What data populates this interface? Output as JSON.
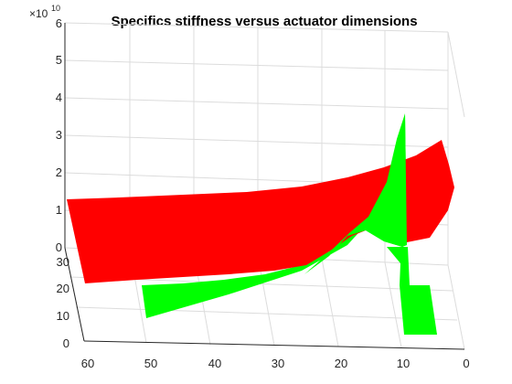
{
  "chart_data": {
    "type": "surface3d",
    "title": "Specifics stiffness versus actuator dimensions",
    "xlabel": "",
    "ylabel": "",
    "zlabel": "",
    "x_ticks": [
      "60",
      "50",
      "40",
      "30",
      "20",
      "10",
      "0"
    ],
    "y_ticks": [
      "0",
      "10",
      "20",
      "30"
    ],
    "z_ticks": [
      "0",
      "1",
      "2",
      "3",
      "4",
      "5",
      "6"
    ],
    "z_exponent_label": "×10",
    "z_exponent": "10",
    "xlim": [
      0,
      60
    ],
    "ylim": [
      0,
      30
    ],
    "zlim": [
      0,
      60000000000.0
    ],
    "grid": true,
    "series": [
      {
        "color": "#ff0000",
        "x_range": [
          0,
          60
        ],
        "y_range": [
          5,
          30
        ],
        "z_at_x": [
          [
            60,
            10500000000.0
          ],
          [
            40,
            12000000000.0
          ],
          [
            20,
            16000000000.0
          ],
          [
            10,
            22000000000.0
          ],
          [
            0,
            30000000000.0
          ]
        ]
      },
      {
        "color": "#00ff00",
        "x_range": [
          5,
          50
        ],
        "y_range": [
          0,
          20
        ],
        "z_at_x": [
          [
            50,
            0.0
          ],
          [
            30,
            3000000000.0
          ],
          [
            20,
            10000000000.0
          ],
          [
            10,
            37000000000.0
          ],
          [
            7,
            5000000000.0
          ]
        ]
      }
    ]
  }
}
